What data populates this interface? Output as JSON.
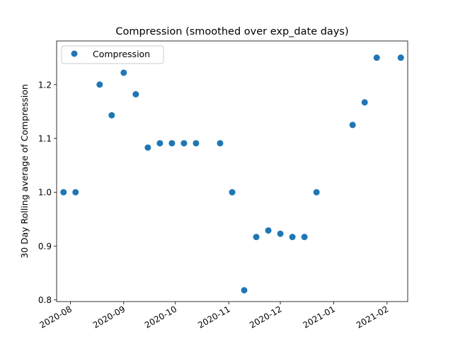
{
  "chart_data": {
    "type": "scatter",
    "title": "Compression  (smoothed over exp_date days)",
    "xlabel": "",
    "ylabel": "30 Day Rolling average of Compression",
    "xlim": [
      "2020-07-24",
      "2021-02-13"
    ],
    "ylim": [
      0.797,
      1.281
    ],
    "x_ticks": [
      "2020-08",
      "2020-09",
      "2020-10",
      "2020-11",
      "2020-12",
      "2021-01",
      "2021-02"
    ],
    "y_ticks": [
      "0.8",
      "0.9",
      "1.0",
      "1.1",
      "1.2"
    ],
    "legend": {
      "position": "upper-left",
      "entries": [
        "Compression"
      ]
    },
    "grid": false,
    "series": [
      {
        "name": "Compression",
        "color": "#1f77b4",
        "points": [
          {
            "x": "2020-07-28",
            "y": 1.0
          },
          {
            "x": "2020-08-04",
            "y": 1.0
          },
          {
            "x": "2020-08-18",
            "y": 1.2
          },
          {
            "x": "2020-08-25",
            "y": 1.143
          },
          {
            "x": "2020-09-01",
            "y": 1.222
          },
          {
            "x": "2020-09-08",
            "y": 1.182
          },
          {
            "x": "2020-09-15",
            "y": 1.083
          },
          {
            "x": "2020-09-22",
            "y": 1.091
          },
          {
            "x": "2020-09-29",
            "y": 1.091
          },
          {
            "x": "2020-10-06",
            "y": 1.091
          },
          {
            "x": "2020-10-13",
            "y": 1.091
          },
          {
            "x": "2020-10-27",
            "y": 1.091
          },
          {
            "x": "2020-11-03",
            "y": 1.0
          },
          {
            "x": "2020-11-10",
            "y": 0.818
          },
          {
            "x": "2020-11-17",
            "y": 0.917
          },
          {
            "x": "2020-11-24",
            "y": 0.929
          },
          {
            "x": "2020-12-01",
            "y": 0.923
          },
          {
            "x": "2020-12-08",
            "y": 0.917
          },
          {
            "x": "2020-12-15",
            "y": 0.917
          },
          {
            "x": "2020-12-22",
            "y": 1.0
          },
          {
            "x": "2021-01-12",
            "y": 1.125
          },
          {
            "x": "2021-01-19",
            "y": 1.167
          },
          {
            "x": "2021-01-26",
            "y": 1.25
          },
          {
            "x": "2021-02-09",
            "y": 1.25
          }
        ]
      }
    ]
  }
}
